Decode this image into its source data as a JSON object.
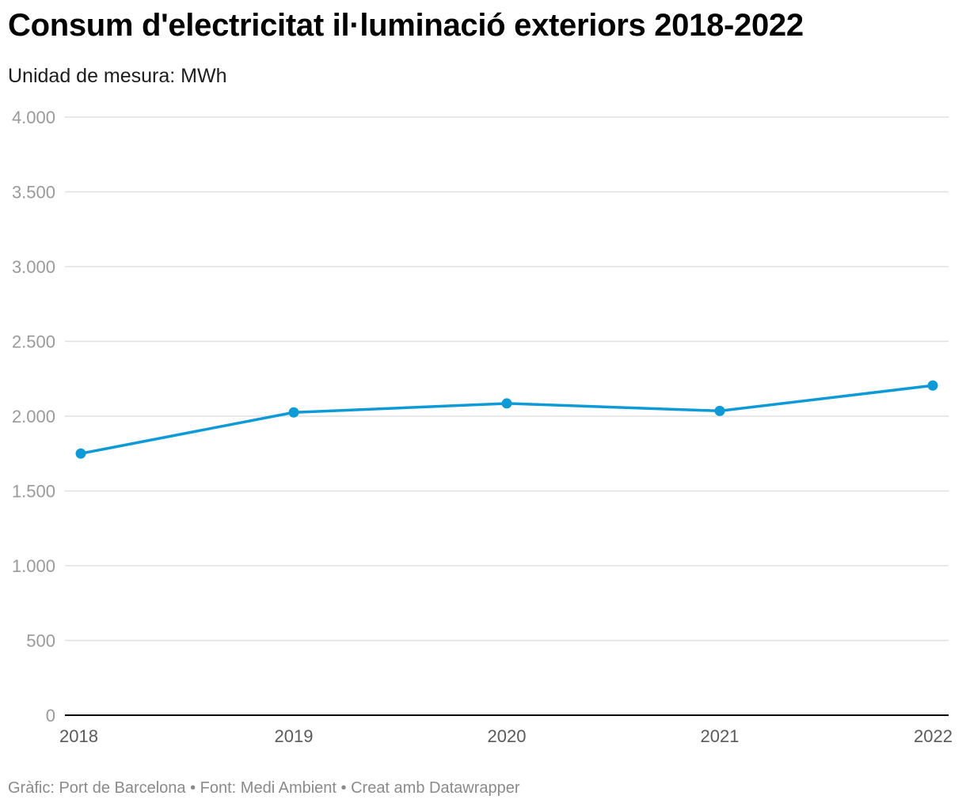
{
  "chart_data": {
    "type": "line",
    "title": "Consum d'electricitat il·luminació exteriors 2018-2022",
    "subtitle": "Unidad de mesura: MWh",
    "x": [
      "2018",
      "2019",
      "2020",
      "2021",
      "2022"
    ],
    "series": [
      {
        "values": [
          1750,
          2025,
          2085,
          2035,
          2205
        ],
        "color": "#0e9ad7"
      }
    ],
    "ylim": [
      0,
      4000
    ],
    "yticks": [
      0,
      500,
      1000,
      1500,
      2000,
      2500,
      3000,
      3500,
      4000
    ],
    "ytick_labels": [
      "0",
      "500",
      "1.000",
      "1.500",
      "2.000",
      "2.500",
      "3.000",
      "3.500",
      "4.000"
    ],
    "grid": true,
    "gridline_color": "#e0e0e0",
    "axis_color": "#000000"
  },
  "footer": "Gràfic: Port de Barcelona • Font: Medi Ambient • Creat amb Datawrapper"
}
